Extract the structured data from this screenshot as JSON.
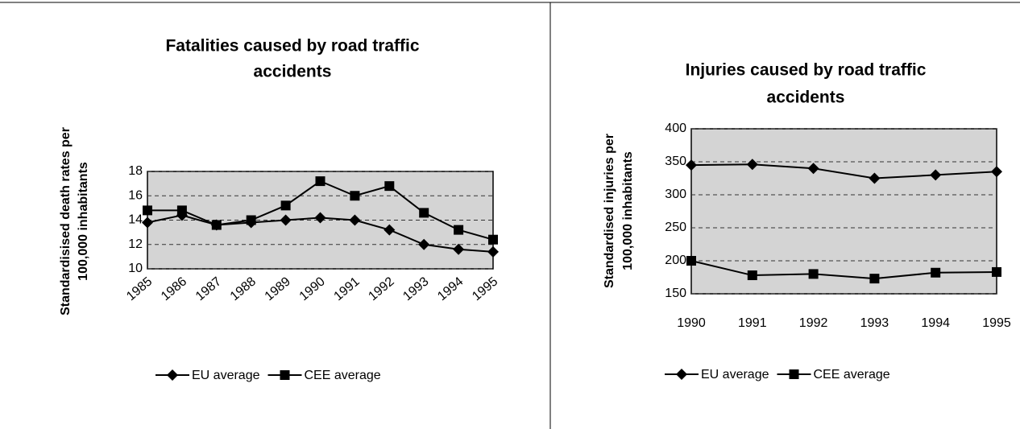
{
  "chart_data": [
    {
      "type": "line",
      "title": [
        "Fatalities caused by road traffic",
        "accidents"
      ],
      "ylabel": [
        "Standardisised death rates per",
        "100,000 inhabitants"
      ],
      "categories": [
        "1985",
        "1986",
        "1987",
        "1988",
        "1989",
        "1990",
        "1991",
        "1992",
        "1993",
        "1994",
        "1995"
      ],
      "series": [
        {
          "name": "EU average",
          "color": "#000000",
          "marker": "diamond",
          "values": [
            13.8,
            14.4,
            13.6,
            13.8,
            14.0,
            14.2,
            14.0,
            13.2,
            12.0,
            11.6,
            11.4
          ]
        },
        {
          "name": "CEE average",
          "color": "#000000",
          "marker": "square",
          "values": [
            14.8,
            14.8,
            13.6,
            14.0,
            15.2,
            17.2,
            16.0,
            16.8,
            14.6,
            13.2,
            12.4
          ]
        }
      ],
      "ylim": [
        10,
        18
      ],
      "yticks": [
        10,
        12,
        14,
        16,
        18
      ],
      "grid": true,
      "legend": "bottom"
    },
    {
      "type": "line",
      "title": [
        "Injuries caused by road traffic",
        "accidents"
      ],
      "ylabel": [
        "Standardised injuries per",
        "100,000 inhabitants"
      ],
      "categories": [
        "1990",
        "1991",
        "1992",
        "1993",
        "1994",
        "1995"
      ],
      "series": [
        {
          "name": "EU average",
          "color": "#000000",
          "marker": "diamond",
          "values": [
            345,
            346,
            340,
            325,
            330,
            335
          ]
        },
        {
          "name": "CEE average",
          "color": "#000000",
          "marker": "square",
          "values": [
            200,
            178,
            180,
            173,
            182,
            183
          ]
        }
      ],
      "ylim": [
        150,
        400
      ],
      "yticks": [
        150,
        200,
        250,
        300,
        350,
        400
      ],
      "grid": true,
      "legend": "bottom"
    }
  ]
}
